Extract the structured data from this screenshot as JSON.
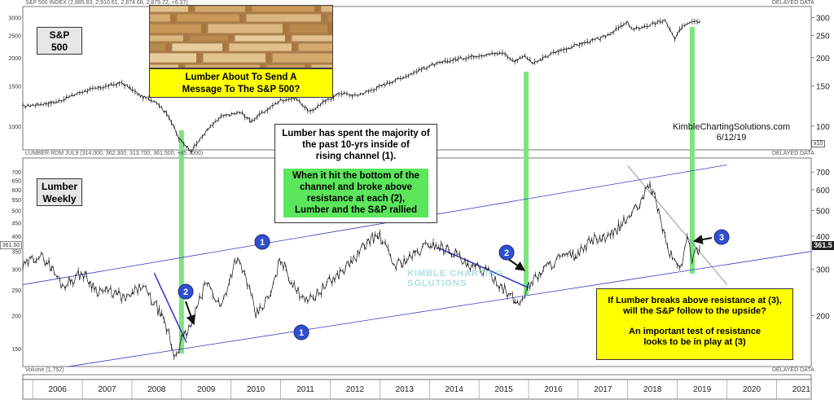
{
  "top_panel": {
    "header": "S&P 500 INDEX (2,885.83, 2,910.61, 2,874.68, 2,879.72, +6.37)",
    "delayed": "DELAYED DATA",
    "x10": "x10",
    "name_label": [
      "S&P",
      "500"
    ]
  },
  "bottom_panel": {
    "header": "LUMBER RDM JUL9 (314.000, 362.300, 313.700, 361.500, +45.7000)",
    "delayed": "DELAYED DATA",
    "name_label": [
      "Lumber",
      "Weekly"
    ],
    "last_price_tag": "361.5",
    "left_price_tag": "361.50"
  },
  "volume_panel": {
    "header": "Volume (1,752)",
    "delayed": "DELAYED DATA"
  },
  "annotations": {
    "photo_caption": [
      "Lumber About To Send A",
      "Message To The S&P 500?"
    ],
    "info_box": [
      "Lumber has spent the majority of",
      "the past 10-yrs inside of",
      "rising channel (1)."
    ],
    "green_box": [
      "When it hit the bottom of the",
      "channel and broke above",
      "resistance at each (2),",
      "Lumber and the S&P rallied"
    ],
    "source": "KimbleChartingSolutions.com",
    "date": "6/12/19",
    "watermark": [
      "KIMBLE CHARTING",
      "SOLUTIONS"
    ],
    "yellow_box": [
      "If Lumber breaks above resistance at (3),",
      "will the S&P follow to the upside?",
      "",
      "An important test of resistance",
      "looks to be in play at (3)"
    ],
    "markers": [
      {
        "label": "1"
      },
      {
        "label": "1"
      },
      {
        "label": "2"
      },
      {
        "label": "2"
      },
      {
        "label": "3"
      }
    ]
  },
  "colors": {
    "highlight_green": "#7ee37e",
    "channel_blue": "#3b3bc6",
    "marker_blue": "#3050d0",
    "yellow_box": "#ffff00",
    "green_box": "#5ce65c"
  },
  "chart_data": [
    {
      "type": "line",
      "name": "S&P 500 INDEX",
      "x_range": [
        2005.8,
        2021.7
      ],
      "yscale": "log",
      "ylim": [
        800,
        3300
      ],
      "y_ticks_left": [
        "3000",
        "2500",
        "2000",
        "1500",
        "1000"
      ],
      "y_ticks_right": [
        "300",
        "250",
        "200",
        "150",
        "100"
      ],
      "x": [
        2005.8,
        2006.5,
        2007.0,
        2007.5,
        2007.8,
        2008.2,
        2008.5,
        2008.75,
        2008.95,
        2009.2,
        2009.5,
        2009.8,
        2010.2,
        2010.4,
        2010.6,
        2011.0,
        2011.3,
        2011.6,
        2011.8,
        2012.2,
        2012.5,
        2012.8,
        2013.2,
        2013.5,
        2014.0,
        2014.5,
        2015.0,
        2015.5,
        2015.7,
        2015.9,
        2016.1,
        2016.5,
        2017.0,
        2017.5,
        2018.0,
        2018.1,
        2018.5,
        2018.75,
        2018.95,
        2019.1,
        2019.3,
        2019.45
      ],
      "y": [
        1220,
        1280,
        1420,
        1500,
        1550,
        1350,
        1280,
        1100,
        880,
        780,
        950,
        1100,
        1150,
        1050,
        1130,
        1300,
        1330,
        1150,
        1250,
        1400,
        1360,
        1430,
        1560,
        1650,
        1840,
        1960,
        2050,
        2100,
        1920,
        2040,
        1880,
        2100,
        2280,
        2450,
        2850,
        2650,
        2800,
        2920,
        2400,
        2750,
        2920,
        2880
      ]
    },
    {
      "type": "line",
      "name": "LUMBER RDM JUL9",
      "x_range": [
        2005.8,
        2021.7
      ],
      "yscale": "log",
      "ylim": [
        130,
        780
      ],
      "y_ticks_left": [
        "700",
        "650",
        "600",
        "550",
        "500",
        "450",
        "400",
        "350",
        "300",
        "250",
        "200",
        "150"
      ],
      "y_ticks_right": [
        "700",
        "600",
        "500",
        "400",
        "300",
        "200"
      ],
      "x": [
        2005.8,
        2006.1,
        2006.3,
        2006.6,
        2007.0,
        2007.3,
        2007.6,
        2007.9,
        2008.2,
        2008.5,
        2008.75,
        2008.85,
        2009.0,
        2009.2,
        2009.5,
        2009.8,
        2010.1,
        2010.3,
        2010.5,
        2010.8,
        2011.0,
        2011.3,
        2011.6,
        2011.9,
        2012.2,
        2012.5,
        2012.8,
        2013.0,
        2013.3,
        2013.6,
        2014.0,
        2014.5,
        2014.8,
        2015.0,
        2015.3,
        2015.6,
        2015.8,
        2016.0,
        2016.3,
        2016.6,
        2017.0,
        2017.3,
        2017.6,
        2018.0,
        2018.3,
        2018.4,
        2018.6,
        2018.8,
        2018.95,
        2019.1,
        2019.2,
        2019.3,
        2019.45
      ],
      "y": [
        305,
        340,
        320,
        260,
        290,
        250,
        245,
        230,
        260,
        215,
        170,
        140,
        160,
        185,
        270,
        215,
        330,
        280,
        200,
        240,
        330,
        250,
        230,
        260,
        290,
        330,
        390,
        400,
        310,
        330,
        375,
        350,
        300,
        305,
        280,
        240,
        220,
        260,
        300,
        330,
        340,
        390,
        390,
        470,
        540,
        650,
        520,
        360,
        320,
        310,
        400,
        330,
        361.5
      ]
    },
    {
      "type": "bar",
      "name": "Volume",
      "x_ticks": [
        "2006",
        "2007",
        "2008",
        "2009",
        "2010",
        "2011",
        "2012",
        "2013",
        "2014",
        "2015",
        "2016",
        "2017",
        "2018",
        "2019",
        "2020",
        "2021"
      ]
    }
  ]
}
